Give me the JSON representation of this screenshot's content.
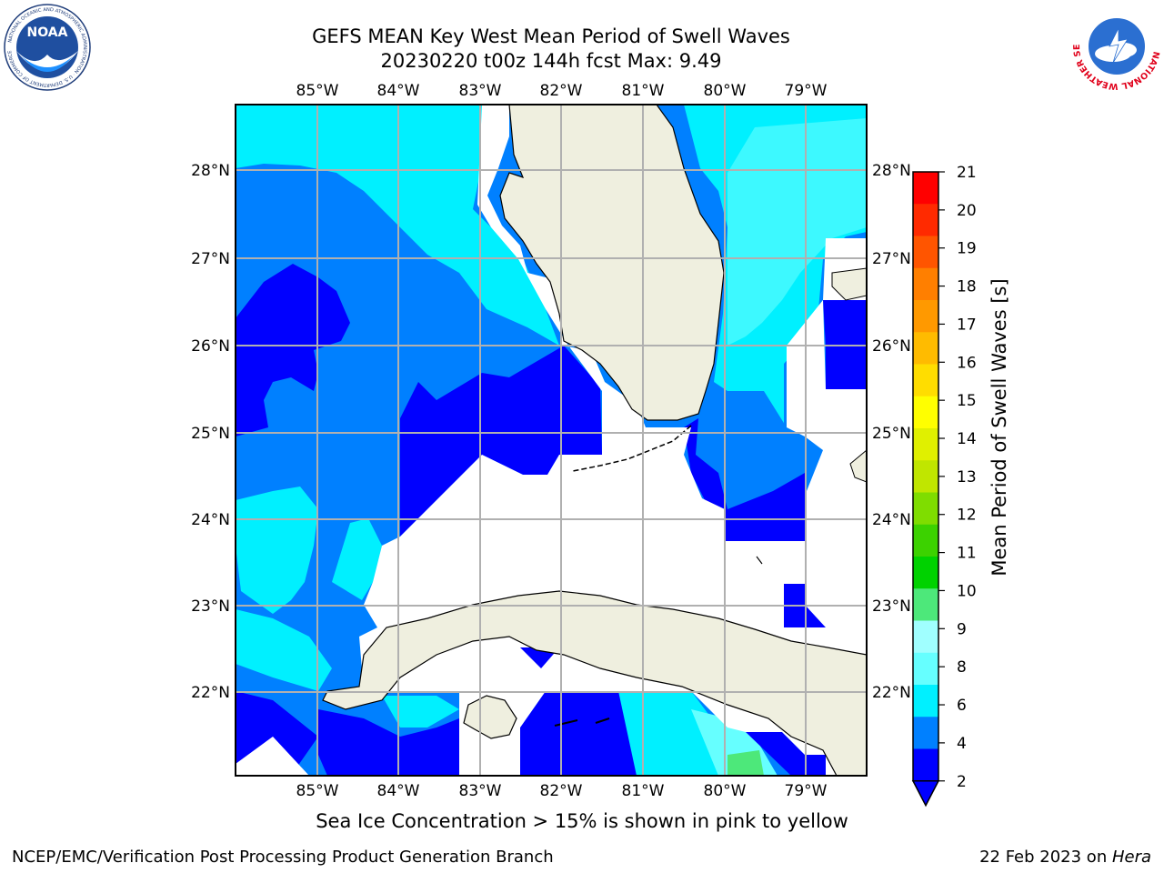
{
  "title_line1": "GEFS MEAN Key West Mean Period of Swell Waves",
  "title_line2": "20230220 t00z 144h fcst   Max: 9.49",
  "note": "Sea Ice Concentration > 15% is shown in pink to yellow",
  "footer_left": "NCEP/EMC/Verification Post Processing Product Generation Branch",
  "footer_date": "22 Feb 2023 on ",
  "footer_machine": "Hera",
  "logos": {
    "noaa_text": "NOAA",
    "noaa_ring": "NATIONAL OCEANIC AND ATMOSPHERIC ADMINISTRATION · U.S. DEPARTMENT OF COMMERCE",
    "nws_ring": "NATIONAL WEATHER SERVICE"
  },
  "map": {
    "lon_labels": [
      "85°W",
      "84°W",
      "83°W",
      "82°W",
      "81°W",
      "80°W",
      "79°W"
    ],
    "lat_labels": [
      "28°N",
      "27°N",
      "26°N",
      "25°N",
      "24°N",
      "23°N",
      "22°N"
    ]
  },
  "colorbar": {
    "label": "Mean Period of Swell Waves [s]",
    "ticks": [
      "21",
      "20",
      "19",
      "18",
      "17",
      "16",
      "15",
      "14",
      "13",
      "12",
      "11",
      "10",
      "9",
      "8",
      "6",
      "4",
      "2"
    ],
    "colors": [
      "#ff0000",
      "#ff2a00",
      "#ff5500",
      "#ff7f00",
      "#ff9900",
      "#ffbb00",
      "#ffdd00",
      "#ffff00",
      "#e0f000",
      "#c0e600",
      "#7fdd00",
      "#3cd200",
      "#00d200",
      "#4de87a",
      "#a0ffff",
      "#66ffff",
      "#00f0ff",
      "#0080ff",
      "#0000ff"
    ],
    "under_color": "#0000ff"
  }
}
